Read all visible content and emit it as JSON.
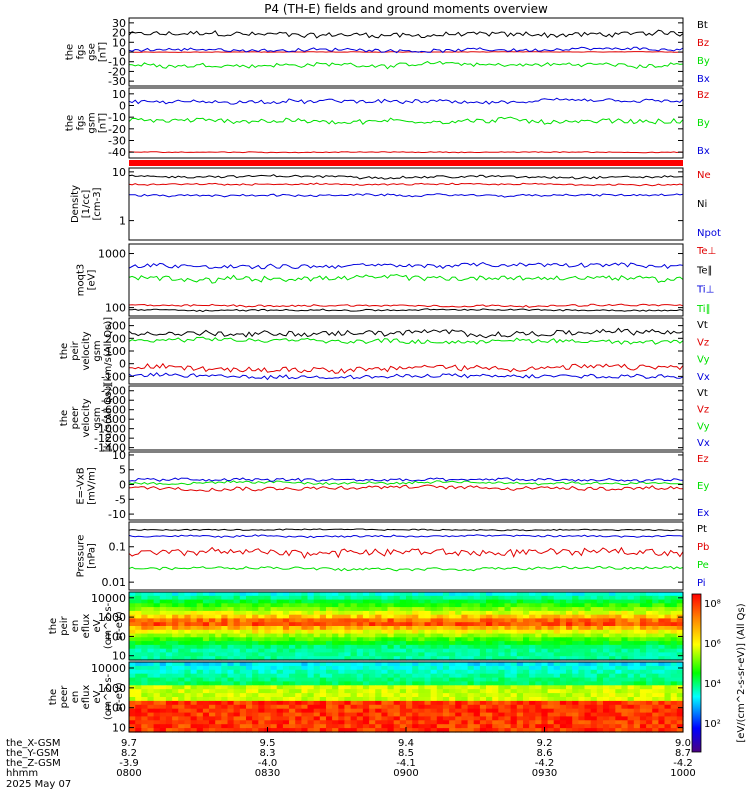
{
  "title": "P4 (TH-E) fields and ground moments overview",
  "colors": {
    "black": "#000000",
    "red": "#e00000",
    "green": "#00e000",
    "blue": "#0000dd"
  },
  "chart_data": [
    {
      "type": "line",
      "name": "fgs_gse",
      "ylabel_lines": [
        "the",
        "fgs",
        "gse",
        "[nT]"
      ],
      "yticks": [
        30,
        20,
        10,
        0,
        -10,
        -20,
        -30
      ],
      "ylim": [
        -35,
        35
      ],
      "series": [
        {
          "name": "Bt",
          "color": "black",
          "base": 18,
          "amp": 5
        },
        {
          "name": "Bz",
          "color": "red",
          "base": 0,
          "amp": 0.4
        },
        {
          "name": "By",
          "color": "green",
          "base": -13,
          "amp": 4
        },
        {
          "name": "Bx",
          "color": "blue",
          "base": 2,
          "amp": 3
        }
      ]
    },
    {
      "type": "line",
      "name": "fgs_gsm",
      "ylabel_lines": [
        "the",
        "fgs",
        "gsm",
        "[nT]"
      ],
      "yticks": [
        10,
        0,
        -10,
        -20,
        -30,
        -40
      ],
      "ylim": [
        -45,
        15
      ],
      "series": [
        {
          "name": "Bz",
          "color": "red",
          "base": -40,
          "amp": 0.6
        },
        {
          "name": "By",
          "color": "green",
          "base": -13,
          "amp": 4
        },
        {
          "name": "Bx",
          "color": "blue",
          "base": 3,
          "amp": 3
        }
      ]
    },
    {
      "type": "line",
      "name": "density",
      "ylabel_lines": [
        "Density",
        "[1/cc]",
        "[cm-3]"
      ],
      "yticks": [
        10,
        1
      ],
      "ylim": [
        0.4,
        12
      ],
      "log": true,
      "series": [
        {
          "name": "Ne",
          "color": "red",
          "base": 5.5,
          "amp": 0.4
        },
        {
          "name": "Ni",
          "color": "black",
          "base": 8,
          "amp": 0.8
        },
        {
          "name": "Npot",
          "color": "blue",
          "base": 3.3,
          "amp": 0.3
        }
      ]
    },
    {
      "type": "line",
      "name": "temperature",
      "ylabel_lines": [
        "moqt3",
        "[eV]"
      ],
      "yticks": [
        1000,
        100
      ],
      "ylim": [
        70,
        1500
      ],
      "log": true,
      "series": [
        {
          "name": "Te⊥",
          "color": "red",
          "base": 110,
          "amp": 8
        },
        {
          "name": "Te∥",
          "color": "black",
          "base": 90,
          "amp": 6
        },
        {
          "name": "Ti⊥",
          "color": "blue",
          "base": 600,
          "amp": 100
        },
        {
          "name": "Ti∥",
          "color": "green",
          "base": 350,
          "amp": 70
        }
      ]
    },
    {
      "type": "line",
      "name": "peir_velocity",
      "ylabel_lines": [
        "the",
        "peir",
        "velocity",
        "gsm",
        "[km/s(All Qs)]"
      ],
      "yticks": [
        300,
        200,
        100,
        0,
        -100
      ],
      "ylim": [
        -160,
        360
      ],
      "series": [
        {
          "name": "Vt",
          "color": "black",
          "base": 240,
          "amp": 40
        },
        {
          "name": "Vz",
          "color": "red",
          "base": -30,
          "amp": 40
        },
        {
          "name": "Vy",
          "color": "green",
          "base": 180,
          "amp": 30
        },
        {
          "name": "Vx",
          "color": "blue",
          "base": -100,
          "amp": 30
        }
      ]
    },
    {
      "type": "line",
      "name": "peer_velocity",
      "ylabel_lines": [
        "the",
        "peer",
        "velocity",
        "gsm",
        "[km/s(All Qs)]"
      ],
      "yticks": [
        -200,
        -400,
        -600,
        -800,
        -1000,
        -1200,
        -1400
      ],
      "ylim": [
        -1450,
        -100
      ],
      "series": [
        {
          "name": "Vt",
          "color": "black"
        },
        {
          "name": "Vz",
          "color": "red"
        },
        {
          "name": "Vy",
          "color": "green"
        },
        {
          "name": "Vx",
          "color": "blue"
        }
      ]
    },
    {
      "type": "line",
      "name": "efield",
      "ylabel_lines": [
        "E=-VxB",
        "[mV/m]"
      ],
      "yticks": [
        10,
        5,
        0,
        -5,
        -10
      ],
      "ylim": [
        -12,
        11
      ],
      "series": [
        {
          "name": "Ez",
          "color": "red",
          "base": -1,
          "amp": 1.2
        },
        {
          "name": "Ey",
          "color": "green",
          "base": 0.5,
          "amp": 0.8
        },
        {
          "name": "Ex",
          "color": "blue",
          "base": 1.5,
          "amp": 1.0
        }
      ]
    },
    {
      "type": "line",
      "name": "pressure",
      "ylabel_lines": [
        "Pressure",
        "[nPa]"
      ],
      "yticks": [
        0.1,
        0.01
      ],
      "ylim": [
        0.006,
        0.5
      ],
      "log": true,
      "series": [
        {
          "name": "Pt",
          "color": "black",
          "base": 0.3,
          "amp": 0.02
        },
        {
          "name": "Pb",
          "color": "red",
          "base": 0.07,
          "amp": 0.03
        },
        {
          "name": "Pe",
          "color": "green",
          "base": 0.025,
          "amp": 0.004
        },
        {
          "name": "Pi",
          "color": "blue",
          "base": 0.2,
          "amp": 0.02
        }
      ]
    },
    {
      "type": "heatmap",
      "name": "peir_spectrogram",
      "ylabel_lines": [
        "the",
        "peir",
        "en",
        "eflux",
        "eV",
        "(cm^2-s-",
        "sr-eV)"
      ],
      "yticks": [
        10000,
        1000,
        100,
        10
      ],
      "ylim": [
        6,
        20000
      ],
      "log": true
    },
    {
      "type": "heatmap",
      "name": "peer_spectrogram",
      "ylabel_lines": [
        "the",
        "peer",
        "en",
        "eflux",
        "eV",
        "(cm^2-s-",
        "sr-eV)"
      ],
      "yticks": [
        10000,
        1000,
        100,
        10
      ],
      "ylim": [
        6,
        20000
      ],
      "log": true
    }
  ],
  "colorbar": {
    "ticks": [
      "10⁸",
      "10⁶",
      "10⁴",
      "10²"
    ],
    "label": "[eV/(cm^2-s-sr-eV)] (All Qs)"
  },
  "xaxis": {
    "rows": [
      {
        "label": "the_X-GSM",
        "values": [
          "9.7",
          "9.5",
          "9.4",
          "9.2",
          "9.0"
        ]
      },
      {
        "label": "the_Y-GSM",
        "values": [
          "8.2",
          "8.3",
          "8.5",
          "8.6",
          "8.7"
        ]
      },
      {
        "label": "the_Z-GSM",
        "values": [
          "-3.9",
          "-4.0",
          "-4.1",
          "-4.2",
          "-4.2"
        ]
      },
      {
        "label": "hhmm",
        "values": [
          "0800",
          "0830",
          "0900",
          "0930",
          "1000"
        ]
      }
    ],
    "date": "2025 May 07"
  }
}
